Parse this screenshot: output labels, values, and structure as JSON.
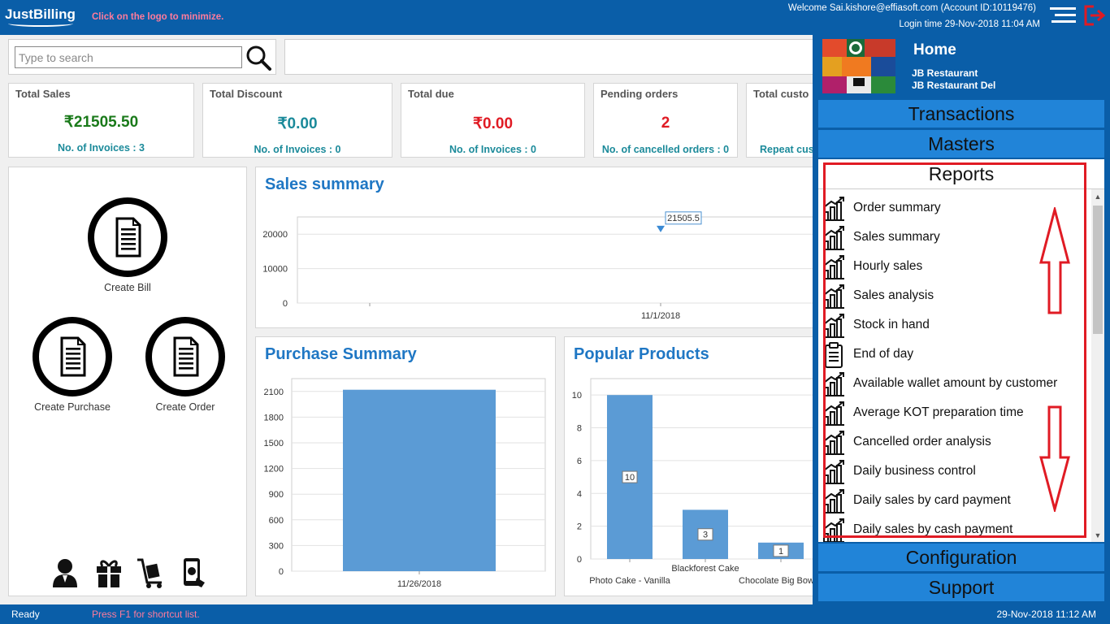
{
  "header": {
    "logo": "JustBilling",
    "hint": "Click on the logo to minimize.",
    "welcome": "Welcome Sai.kishore@effiasoft.com (Account ID:10119476)",
    "login_time": "Login time  29-Nov-2018 11:04 AM"
  },
  "search": {
    "placeholder": "Type to search"
  },
  "stats": [
    {
      "label": "Total Sales",
      "value": "₹21505.50",
      "sub": "No. of Invoices : 3",
      "color": "#1a7a1a"
    },
    {
      "label": "Total Discount",
      "value": "₹0.00",
      "sub": "No. of Invoices : 0",
      "color": "#1b8a9a"
    },
    {
      "label": "Total due",
      "value": "₹0.00",
      "sub": "No. of Invoices : 0",
      "color": "#e01b24"
    },
    {
      "label": "Pending orders",
      "value": "2",
      "sub": "No. of cancelled orders : 0",
      "color": "#e01b24"
    },
    {
      "label": "Total custo",
      "value": "",
      "sub": "Repeat cus",
      "color": "#1b8a9a"
    }
  ],
  "actions": {
    "create_bill": "Create Bill",
    "create_purchase": "Create Purchase",
    "create_order": "Create Order"
  },
  "bottom_icons": [
    "customer-icon",
    "gift-icon",
    "trolley-icon",
    "mobile-payment-icon"
  ],
  "panels": {
    "sales_title": "Sales summary",
    "purchase_title": "Purchase Summary",
    "popular_title": "Popular Products"
  },
  "chart_data": [
    {
      "type": "line",
      "title": "Sales summary",
      "x": [
        "11/1/2018"
      ],
      "series": [
        {
          "values": [
            21505.5
          ]
        }
      ],
      "data_labels": [
        "21505.5"
      ],
      "y_ticks": [
        0,
        10000,
        20000
      ],
      "ylim": [
        0,
        25000
      ],
      "grid": true
    },
    {
      "type": "bar",
      "title": "Purchase Summary",
      "categories": [
        "11/26/2018"
      ],
      "values": [
        2120
      ],
      "y_ticks": [
        0,
        300,
        600,
        900,
        1200,
        1500,
        1800,
        2100
      ],
      "ylim": [
        0,
        2250
      ],
      "grid": true
    },
    {
      "type": "bar",
      "title": "Popular Products",
      "categories": [
        "Photo Cake - Vanilla",
        "Blackforest Cake",
        "Chocolate Big Bow C"
      ],
      "values": [
        10,
        3,
        1
      ],
      "data_labels": [
        "10",
        "3",
        "1"
      ],
      "y_ticks": [
        0,
        2,
        4,
        6,
        8,
        10
      ],
      "ylim": [
        0,
        11
      ],
      "grid": true
    }
  ],
  "drawer": {
    "home": "Home",
    "restaurant1": "JB Restaurant",
    "restaurant2": "JB Restaurant Del",
    "transactions": "Transactions",
    "masters": "Masters",
    "reports": "Reports",
    "configuration": "Configuration",
    "support": "Support",
    "report_items": [
      {
        "label": "Order summary",
        "icon": "bar-chart-icon"
      },
      {
        "label": "Sales summary",
        "icon": "bar-chart-icon"
      },
      {
        "label": "Hourly sales",
        "icon": "bar-chart-icon"
      },
      {
        "label": "Sales analysis",
        "icon": "bar-chart-icon"
      },
      {
        "label": "Stock in hand",
        "icon": "bar-chart-icon"
      },
      {
        "label": "End of day",
        "icon": "clipboard-icon"
      },
      {
        "label": "Available wallet amount by customer",
        "icon": "bar-chart-icon"
      },
      {
        "label": "Average KOT preparation time",
        "icon": "bar-chart-icon"
      },
      {
        "label": "Cancelled order analysis",
        "icon": "bar-chart-icon"
      },
      {
        "label": "Daily business control",
        "icon": "bar-chart-icon"
      },
      {
        "label": "Daily sales by card payment",
        "icon": "bar-chart-icon"
      },
      {
        "label": "Daily sales by cash payment",
        "icon": "bar-chart-icon"
      }
    ]
  },
  "status": {
    "ready": "Ready",
    "shortcut": "Press F1 for shortcut list.",
    "datetime": "29-Nov-2018 11:12 AM"
  }
}
